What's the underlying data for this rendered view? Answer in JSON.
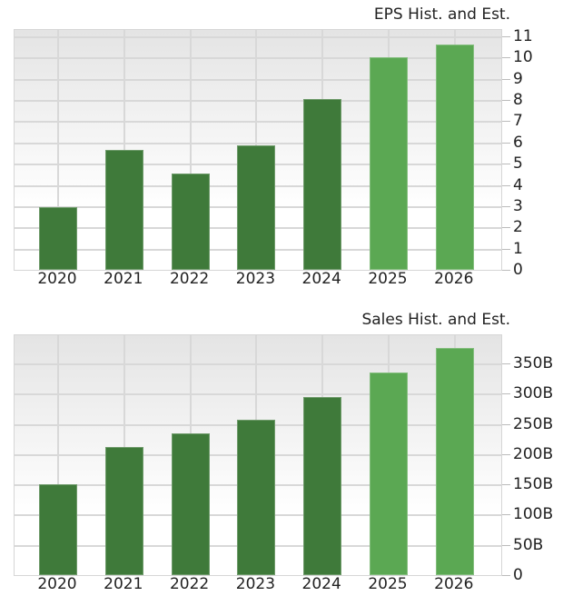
{
  "chart_data": [
    {
      "type": "bar",
      "title": "EPS Hist. and Est.",
      "xlabel": "",
      "ylabel": "",
      "categories": [
        "2020",
        "2021",
        "2022",
        "2023",
        "2024",
        "2025",
        "2026"
      ],
      "values": [
        2.95,
        5.65,
        4.55,
        5.85,
        8.05,
        10.0,
        10.6
      ],
      "series_kind": [
        "historical",
        "historical",
        "historical",
        "historical",
        "historical",
        "estimate",
        "estimate"
      ],
      "ylim": [
        0,
        11
      ],
      "yticks": [
        "0",
        "1",
        "2",
        "3",
        "4",
        "5",
        "6",
        "7",
        "8",
        "9",
        "10",
        "11"
      ],
      "ytick_values": [
        0,
        1,
        2,
        3,
        4,
        5,
        6,
        7,
        8,
        9,
        10,
        11
      ],
      "grid": true,
      "y_axis_position": "right",
      "colors": {
        "historical": "#3f7a3a",
        "estimate": "#5ba853"
      }
    },
    {
      "type": "bar",
      "title": "Sales Hist. and Est.",
      "xlabel": "",
      "ylabel": "",
      "categories": [
        "2020",
        "2021",
        "2022",
        "2023",
        "2024",
        "2025",
        "2026"
      ],
      "values": [
        150000000000,
        212000000000,
        234000000000,
        257000000000,
        295000000000,
        335000000000,
        376000000000
      ],
      "values_display_B": [
        150,
        212,
        234,
        257,
        295,
        335,
        376
      ],
      "series_kind": [
        "historical",
        "historical",
        "historical",
        "historical",
        "historical",
        "estimate",
        "estimate"
      ],
      "ylim": [
        0,
        395000000000
      ],
      "yticks": [
        "0",
        "50B",
        "100B",
        "150B",
        "200B",
        "250B",
        "300B",
        "350B"
      ],
      "ytick_values": [
        0,
        50,
        100,
        150,
        200,
        250,
        300,
        350
      ],
      "grid": true,
      "y_axis_position": "right",
      "colors": {
        "historical": "#3f7a3a",
        "estimate": "#5ba853"
      }
    }
  ]
}
